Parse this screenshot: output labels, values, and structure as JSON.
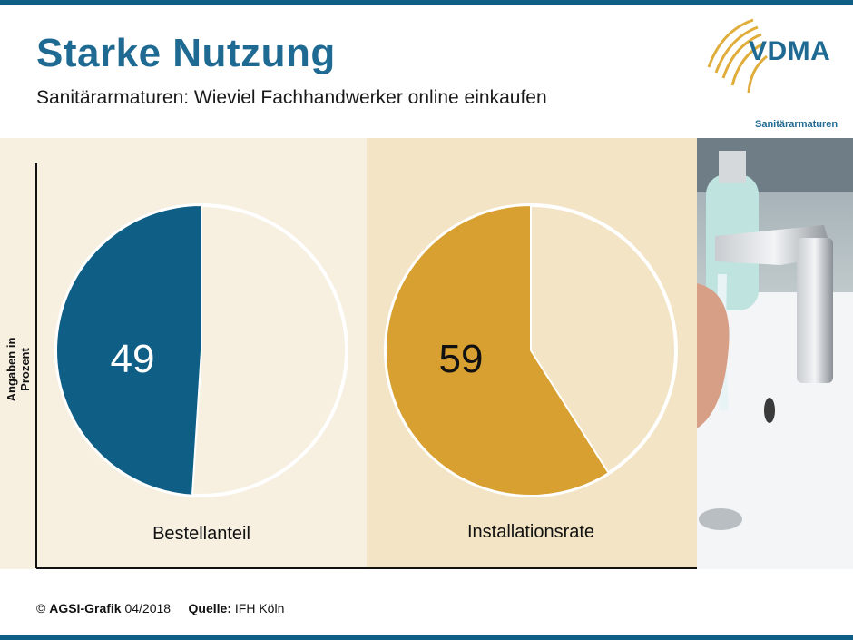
{
  "header": {
    "title": "Starke Nutzung",
    "subtitle": "Sanitärarmaturen: Wieviel Fachhandwerker online einkaufen"
  },
  "logo": {
    "text": "VDMA",
    "subtext": "Sanitärarmaturen"
  },
  "colors": {
    "brand_blue": "#1f6a93",
    "series_blue": "#0f5e86",
    "series_gold": "#d7a031",
    "panel_bg": "#f7efe0",
    "panel_mid_bg": "#f2e4c5"
  },
  "chart_data": {
    "type": "pie",
    "ylabel": "Angaben in Prozent",
    "charts": [
      {
        "label": "Bestellanteil",
        "value": 49,
        "color": "#0f5e86"
      },
      {
        "label": "Installationsrate",
        "value": 59,
        "color": "#d7a031"
      }
    ]
  },
  "footer": {
    "copyright_symbol": "©",
    "brand": "AGSI-Grafik",
    "date": "04/2018",
    "source_label": "Quelle:",
    "source": "IFH Köln"
  }
}
